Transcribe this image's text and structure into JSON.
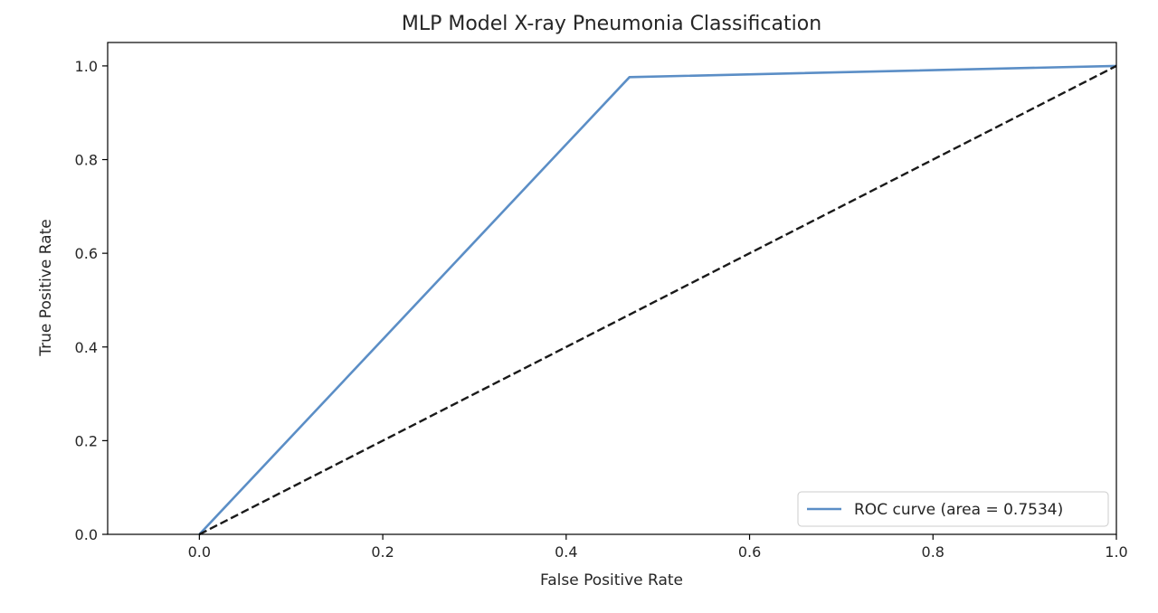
{
  "chart_data": {
    "type": "line",
    "title": "MLP Model X-ray Pneumonia Classification",
    "xlabel": "False Positive Rate",
    "ylabel": "True Positive Rate",
    "xlim": [
      -0.1,
      1.0
    ],
    "ylim": [
      0.0,
      1.05
    ],
    "xticks": [
      0.0,
      0.2,
      0.4,
      0.6,
      0.8,
      1.0
    ],
    "yticks": [
      0.0,
      0.2,
      0.4,
      0.6,
      0.8,
      1.0
    ],
    "xtick_labels": [
      "0.0",
      "0.2",
      "0.4",
      "0.6",
      "0.8",
      "1.0"
    ],
    "ytick_labels": [
      "0.0",
      "0.2",
      "0.4",
      "0.6",
      "0.8",
      "1.0"
    ],
    "grid": false,
    "legend_position": "lower-right",
    "series": [
      {
        "name": "ROC curve (area = 0.7534)",
        "style": "solid",
        "color": "#5b8ec6",
        "x": [
          0.0,
          0.469,
          1.0
        ],
        "y": [
          0.0,
          0.976,
          1.0
        ]
      },
      {
        "style": "dashed",
        "color": "#1a1a1a",
        "x": [
          0.0,
          1.0
        ],
        "y": [
          0.0,
          1.0
        ]
      }
    ]
  }
}
